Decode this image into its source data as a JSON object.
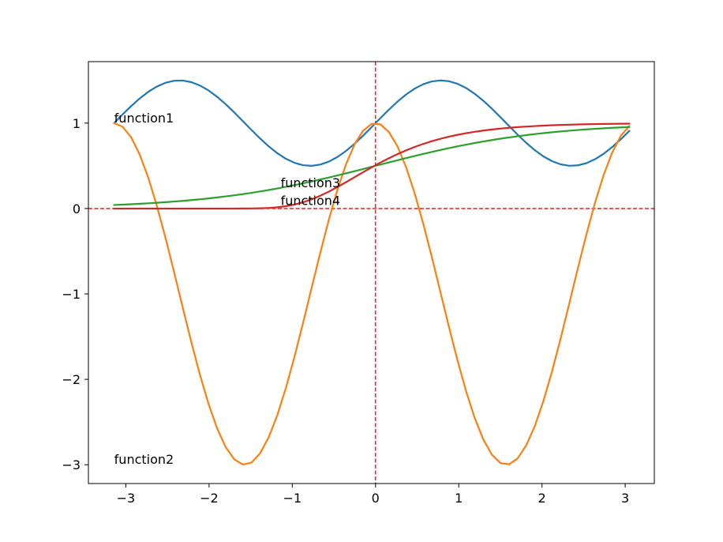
{
  "chart_data": {
    "type": "line",
    "title": "",
    "xlabel": "",
    "ylabel": "",
    "xlim": [
      -3.45,
      3.35
    ],
    "ylim": [
      -3.22,
      1.72
    ],
    "x_ticks": [
      -3,
      -2,
      -1,
      0,
      1,
      2,
      3
    ],
    "x_tick_labels": [
      "−3",
      "−2",
      "−1",
      "0",
      "1",
      "2",
      "3"
    ],
    "y_ticks": [
      -3,
      -2,
      -1,
      0,
      1
    ],
    "y_tick_labels": [
      "−3",
      "−2",
      "−1",
      "0",
      "1"
    ],
    "grid": false,
    "reference_lines": [
      {
        "orientation": "horizontal",
        "value": 0,
        "style": "dashed",
        "color": "#ff0000"
      },
      {
        "orientation": "vertical",
        "value": 0,
        "style": "dashed",
        "color": "#ff0000"
      }
    ],
    "x_range": [
      -3.14159,
      3.05
    ],
    "sample_count": 61,
    "series": [
      {
        "color": "#1f77b4",
        "formula": "sin(2x)/2 + 1",
        "annotation": {
          "text": "function1",
          "x": -3.14,
          "y": 1.0
        }
      },
      {
        "color": "#ff7f0e",
        "formula": "2cos(2x) - 1",
        "annotation": {
          "text": "function2",
          "x": -3.14,
          "y": -3.0
        }
      },
      {
        "color": "#2ca02c",
        "formula": "1/(1+exp(-x))",
        "annotation": {
          "text": "function3",
          "x": -1.14,
          "y": 0.24
        }
      },
      {
        "color": "#d62728",
        "formula": "exp(-exp(-(x+0.25)*1.55))",
        "annotation": {
          "text": "function4",
          "x": -1.14,
          "y": 0.03
        }
      }
    ]
  }
}
